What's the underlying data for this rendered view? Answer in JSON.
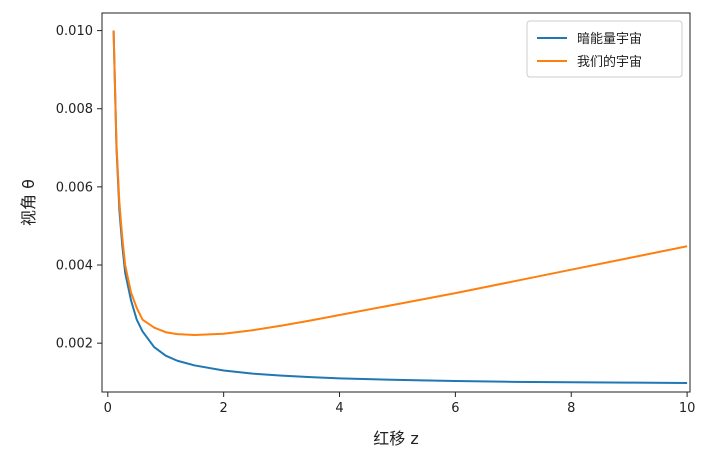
{
  "chart_data": {
    "type": "line",
    "title": "",
    "xlabel": "红移 z",
    "ylabel": "视角 θ",
    "xlim": [
      -0.1,
      10.05
    ],
    "ylim": [
      0.00075,
      0.01045
    ],
    "xticks": [
      0,
      2,
      4,
      6,
      8,
      10
    ],
    "xtick_labels": [
      "0",
      "2",
      "4",
      "6",
      "8",
      "10"
    ],
    "yticks": [
      0.002,
      0.004,
      0.006,
      0.008,
      0.01
    ],
    "ytick_labels": [
      "0.002",
      "0.004",
      "0.006",
      "0.008",
      "0.010"
    ],
    "grid": false,
    "legend_position": "top-right",
    "series": [
      {
        "name": "暗能量宇宙",
        "color": "#1f77b4",
        "x": [
          0.1,
          0.15,
          0.2,
          0.25,
          0.3,
          0.4,
          0.5,
          0.6,
          0.8,
          1.0,
          1.2,
          1.5,
          2.0,
          2.5,
          3.0,
          3.5,
          4.0,
          5.0,
          6.0,
          7.0,
          8.0,
          9.0,
          10.0
        ],
        "y": [
          0.01,
          0.007,
          0.0054,
          0.0045,
          0.0038,
          0.0031,
          0.0026,
          0.0023,
          0.0019,
          0.00168,
          0.00155,
          0.00143,
          0.0013,
          0.00122,
          0.00117,
          0.00113,
          0.0011,
          0.00106,
          0.00103,
          0.00101,
          0.001,
          0.00099,
          0.00098
        ]
      },
      {
        "name": "我们的宇宙",
        "color": "#ff7f0e",
        "x": [
          0.1,
          0.15,
          0.2,
          0.25,
          0.3,
          0.4,
          0.5,
          0.6,
          0.8,
          1.0,
          1.2,
          1.5,
          2.0,
          2.5,
          3.0,
          3.5,
          4.0,
          5.0,
          6.0,
          7.0,
          8.0,
          9.0,
          10.0
        ],
        "y": [
          0.01,
          0.0071,
          0.0056,
          0.0047,
          0.004,
          0.0033,
          0.0029,
          0.0026,
          0.0024,
          0.00228,
          0.00223,
          0.00221,
          0.00224,
          0.00233,
          0.00245,
          0.00258,
          0.00272,
          0.003,
          0.00328,
          0.00358,
          0.00388,
          0.00418,
          0.00448
        ]
      }
    ]
  }
}
